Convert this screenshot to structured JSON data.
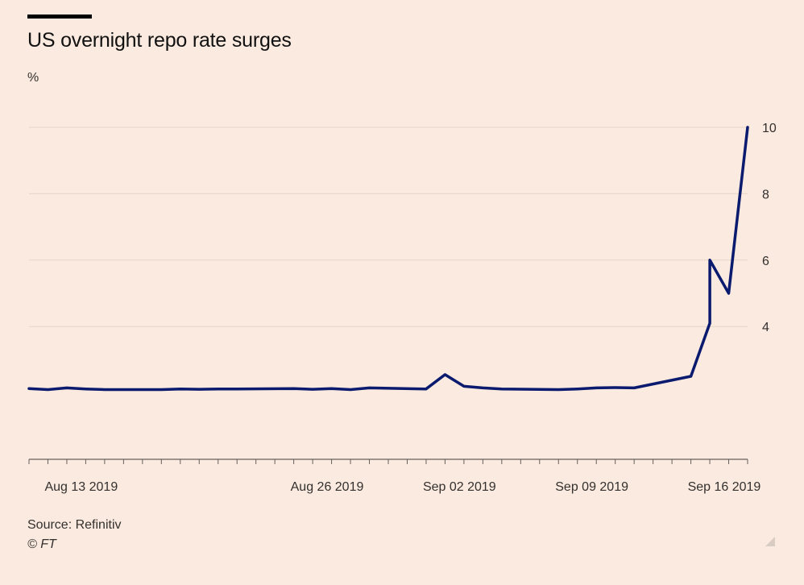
{
  "header": {
    "title": "US overnight repo rate surges",
    "unit": "%"
  },
  "footer": {
    "source": "Source: Refinitiv",
    "copyright": "© FT"
  },
  "colors": {
    "background": "#fbeadf",
    "line": "#0a1a6e",
    "grid": "#e6d6ca",
    "axis": "#66605c",
    "text": "#33302e"
  },
  "chart_data": {
    "type": "line",
    "title": "US overnight repo rate surges",
    "ylabel": "%",
    "xlabel": "",
    "ylim": [
      0,
      10
    ],
    "xlim": [
      "2019-08-12",
      "2019-09-19"
    ],
    "y_ticks": [
      4,
      6,
      8,
      10
    ],
    "x_tick_labels": [
      {
        "date": "2019-08-13",
        "label": "Aug 13 2019"
      },
      {
        "date": "2019-08-26",
        "label": "Aug 26 2019"
      },
      {
        "date": "2019-09-02",
        "label": "Sep 02 2019"
      },
      {
        "date": "2019-09-09",
        "label": "Sep 09 2019"
      },
      {
        "date": "2019-09-16",
        "label": "Sep 16 2019"
      }
    ],
    "grid": true,
    "series": [
      {
        "x": [
          "2019-08-12",
          "2019-08-13",
          "2019-08-14",
          "2019-08-15",
          "2019-08-16",
          "2019-08-19",
          "2019-08-20",
          "2019-08-21",
          "2019-08-22",
          "2019-08-23",
          "2019-08-26",
          "2019-08-27",
          "2019-08-28",
          "2019-08-29",
          "2019-08-30",
          "2019-09-02",
          "2019-09-03",
          "2019-09-04",
          "2019-09-05",
          "2019-09-06",
          "2019-09-09",
          "2019-09-10",
          "2019-09-11",
          "2019-09-12",
          "2019-09-13",
          "2019-09-16",
          "2019-09-17",
          "2019-09-17",
          "2019-09-18",
          "2019-09-19"
        ],
        "values": [
          2.13,
          2.1,
          2.15,
          2.12,
          2.1,
          2.1,
          2.12,
          2.11,
          2.12,
          2.12,
          2.13,
          2.11,
          2.13,
          2.1,
          2.15,
          2.12,
          2.55,
          2.2,
          2.15,
          2.12,
          2.1,
          2.12,
          2.15,
          2.16,
          2.15,
          2.5,
          4.1,
          6.0,
          5.0,
          10.0
        ]
      }
    ]
  }
}
